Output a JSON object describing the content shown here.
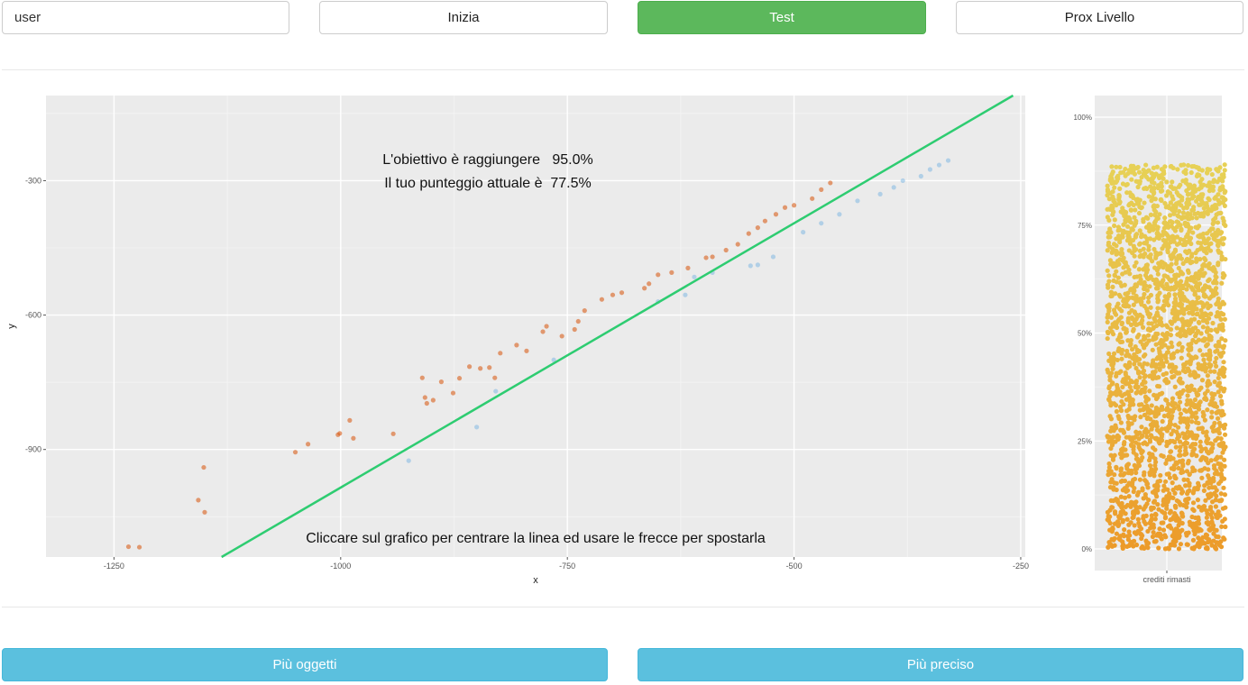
{
  "controls": {
    "user_value": "user",
    "start_label": "Inizia",
    "test_label": "Test",
    "next_level_label": "Prox Livello",
    "more_objects_label": "Più oggetti",
    "more_precise_label": "Più preciso"
  },
  "annotations": {
    "target_text": "L'obiettivo è raggiungere   95.0%",
    "score_text": "Il tuo punteggio attuale è  77.5%",
    "instruction_text": "Cliccare sul grafico per centrare la linea ed usare le frecce per spostarla"
  },
  "colors": {
    "accent_green": "#5cb85c",
    "button_blue": "#5bc0de",
    "line_green": "#2ecc71",
    "above_points": "#d95f1a",
    "below_points": "#6aaee0"
  },
  "chart_data": [
    {
      "type": "scatter",
      "title": "",
      "xlabel": "x",
      "ylabel": "y",
      "xlim": [
        -1325,
        -245
      ],
      "ylim": [
        -1140,
        -110
      ],
      "x_ticks": [
        -1250,
        -1000,
        -750,
        -500,
        -250
      ],
      "y_ticks": [
        -300,
        -600,
        -900
      ],
      "grid": true,
      "line": {
        "slope": 1.18,
        "intercept": 195
      },
      "series": [
        {
          "role": "above-line",
          "points": [
            [
              -1234,
              -1117
            ],
            [
              -1222,
              -1118
            ],
            [
              -1150,
              -1040
            ],
            [
              -1157,
              -1013
            ],
            [
              -1151,
              -940
            ],
            [
              -1050,
              -906
            ],
            [
              -1036,
              -888
            ],
            [
              -1003,
              -867
            ],
            [
              -1001,
              -864
            ],
            [
              -990,
              -835
            ],
            [
              -986,
              -875
            ],
            [
              -942,
              -865
            ],
            [
              -907,
              -784
            ],
            [
              -905,
              -797
            ],
            [
              -898,
              -790
            ],
            [
              -910,
              -740
            ],
            [
              -889,
              -749
            ],
            [
              -876,
              -774
            ],
            [
              -869,
              -741
            ],
            [
              -858,
              -715
            ],
            [
              -846,
              -719
            ],
            [
              -836,
              -717
            ],
            [
              -830,
              -740
            ],
            [
              -824,
              -685
            ],
            [
              -806,
              -667
            ],
            [
              -795,
              -680
            ],
            [
              -777,
              -637
            ],
            [
              -773,
              -625
            ],
            [
              -756,
              -647
            ],
            [
              -742,
              -632
            ],
            [
              -738,
              -614
            ],
            [
              -731,
              -590
            ],
            [
              -712,
              -565
            ],
            [
              -700,
              -555
            ],
            [
              -690,
              -550
            ],
            [
              -665,
              -540
            ],
            [
              -660,
              -530
            ],
            [
              -650,
              -510
            ],
            [
              -635,
              -505
            ],
            [
              -617,
              -495
            ],
            [
              -597,
              -472
            ],
            [
              -590,
              -470
            ],
            [
              -575,
              -455
            ],
            [
              -562,
              -442
            ],
            [
              -550,
              -418
            ],
            [
              -540,
              -405
            ],
            [
              -532,
              -390
            ],
            [
              -520,
              -375
            ],
            [
              -510,
              -360
            ],
            [
              -500,
              -355
            ],
            [
              -480,
              -340
            ],
            [
              -470,
              -320
            ],
            [
              -460,
              -305
            ]
          ]
        },
        {
          "role": "below-line",
          "points": [
            [
              -925,
              -925
            ],
            [
              -850,
              -850
            ],
            [
              -829,
              -770
            ],
            [
              -765,
              -700
            ],
            [
              -650,
              -570
            ],
            [
              -620,
              -555
            ],
            [
              -610,
              -515
            ],
            [
              -590,
              -505
            ],
            [
              -548,
              -490
            ],
            [
              -540,
              -488
            ],
            [
              -523,
              -470
            ],
            [
              -490,
              -415
            ],
            [
              -470,
              -395
            ],
            [
              -450,
              -375
            ],
            [
              -430,
              -345
            ],
            [
              -405,
              -330
            ],
            [
              -390,
              -315
            ],
            [
              -380,
              -300
            ],
            [
              -360,
              -290
            ],
            [
              -350,
              -275
            ],
            [
              -340,
              -265
            ],
            [
              -330,
              -255
            ]
          ]
        }
      ]
    },
    {
      "type": "scatter",
      "title": "",
      "xlabel": "crediti rimasti",
      "ylabel": "",
      "y_ticks": [
        "0%",
        "25%",
        "50%",
        "75%",
        "100%"
      ],
      "ylim": [
        0,
        100
      ],
      "fill_level_percent": 89,
      "color_low": "#ec9b2a",
      "color_high": "#e6d85c"
    }
  ]
}
